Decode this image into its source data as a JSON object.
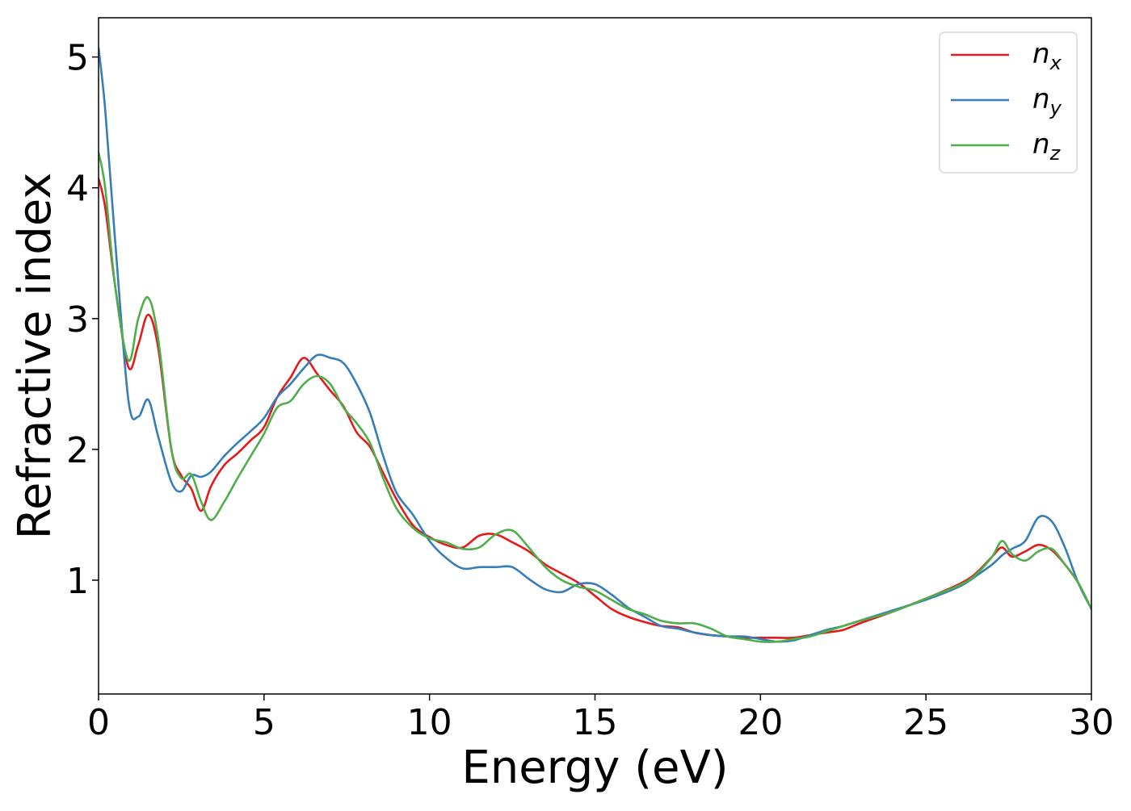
{
  "chart_data": {
    "type": "line",
    "xlabel": "Energy (eV)",
    "ylabel": "Refractive index",
    "xlim": [
      0,
      30
    ],
    "ylim": [
      0.13,
      5.3
    ],
    "xticks": [
      0,
      5,
      10,
      15,
      20,
      25,
      30
    ],
    "yticks": [
      1,
      2,
      3,
      4,
      5
    ],
    "xtick_labels": [
      "0",
      "5",
      "10",
      "15",
      "20",
      "25",
      "30"
    ],
    "ytick_labels": [
      "1",
      "2",
      "3",
      "4",
      "5"
    ],
    "grid": false,
    "legend_position": "top-right",
    "x": [
      0,
      0.2,
      0.5,
      0.9,
      1.2,
      1.5,
      1.8,
      2.2,
      2.5,
      2.8,
      3.1,
      3.4,
      3.8,
      4.2,
      4.6,
      5.0,
      5.4,
      5.8,
      6.2,
      6.6,
      7.0,
      7.4,
      7.8,
      8.2,
      8.6,
      9.0,
      9.5,
      10.0,
      10.5,
      11.0,
      11.5,
      12.0,
      12.5,
      13.0,
      13.5,
      14.0,
      14.5,
      15.0,
      15.5,
      16.0,
      16.5,
      17.0,
      17.5,
      18.0,
      18.5,
      19.0,
      19.5,
      20.0,
      20.5,
      21.0,
      21.5,
      22.0,
      22.5,
      23.0,
      24.0,
      25.0,
      26.0,
      26.5,
      27.0,
      27.3,
      27.6,
      28.0,
      28.4,
      28.8,
      29.2,
      29.6,
      30.0
    ],
    "series": [
      {
        "name": "n",
        "subscript": "x",
        "color": "#e41a1c",
        "values": [
          4.07,
          3.85,
          3.25,
          2.63,
          2.8,
          3.03,
          2.78,
          2.0,
          1.8,
          1.7,
          1.53,
          1.72,
          1.88,
          1.97,
          2.07,
          2.17,
          2.4,
          2.55,
          2.7,
          2.58,
          2.45,
          2.33,
          2.13,
          2.02,
          1.82,
          1.62,
          1.42,
          1.33,
          1.27,
          1.25,
          1.34,
          1.35,
          1.29,
          1.22,
          1.12,
          1.05,
          0.98,
          0.88,
          0.78,
          0.72,
          0.68,
          0.65,
          0.64,
          0.6,
          0.58,
          0.57,
          0.56,
          0.56,
          0.56,
          0.56,
          0.58,
          0.6,
          0.62,
          0.67,
          0.76,
          0.86,
          0.97,
          1.05,
          1.18,
          1.25,
          1.18,
          1.22,
          1.27,
          1.23,
          1.12,
          0.98,
          0.78
        ]
      },
      {
        "name": "n",
        "subscript": "y",
        "color": "#377eb8",
        "values": [
          5.07,
          4.6,
          3.6,
          2.38,
          2.25,
          2.38,
          2.1,
          1.75,
          1.68,
          1.8,
          1.79,
          1.83,
          1.95,
          2.05,
          2.14,
          2.24,
          2.4,
          2.5,
          2.62,
          2.72,
          2.7,
          2.66,
          2.5,
          2.28,
          1.95,
          1.67,
          1.5,
          1.3,
          1.17,
          1.09,
          1.1,
          1.1,
          1.1,
          1.01,
          0.93,
          0.91,
          0.97,
          0.97,
          0.89,
          0.79,
          0.72,
          0.65,
          0.63,
          0.6,
          0.58,
          0.57,
          0.57,
          0.55,
          0.53,
          0.54,
          0.58,
          0.62,
          0.65,
          0.69,
          0.77,
          0.85,
          0.95,
          1.03,
          1.12,
          1.19,
          1.24,
          1.3,
          1.48,
          1.45,
          1.25,
          0.98,
          0.78
        ]
      },
      {
        "name": "n",
        "subscript": "z",
        "color": "#4daf4a",
        "values": [
          4.27,
          4.0,
          3.25,
          2.68,
          3.0,
          3.16,
          2.85,
          2.0,
          1.78,
          1.81,
          1.6,
          1.46,
          1.6,
          1.78,
          1.95,
          2.12,
          2.32,
          2.37,
          2.5,
          2.56,
          2.5,
          2.32,
          2.2,
          2.05,
          1.78,
          1.55,
          1.4,
          1.32,
          1.29,
          1.24,
          1.25,
          1.35,
          1.38,
          1.25,
          1.1,
          1.0,
          0.95,
          0.92,
          0.85,
          0.78,
          0.74,
          0.69,
          0.67,
          0.67,
          0.63,
          0.57,
          0.55,
          0.53,
          0.53,
          0.55,
          0.57,
          0.61,
          0.65,
          0.69,
          0.76,
          0.86,
          0.96,
          1.04,
          1.18,
          1.3,
          1.2,
          1.15,
          1.22,
          1.24,
          1.12,
          0.98,
          0.78
        ]
      }
    ]
  }
}
